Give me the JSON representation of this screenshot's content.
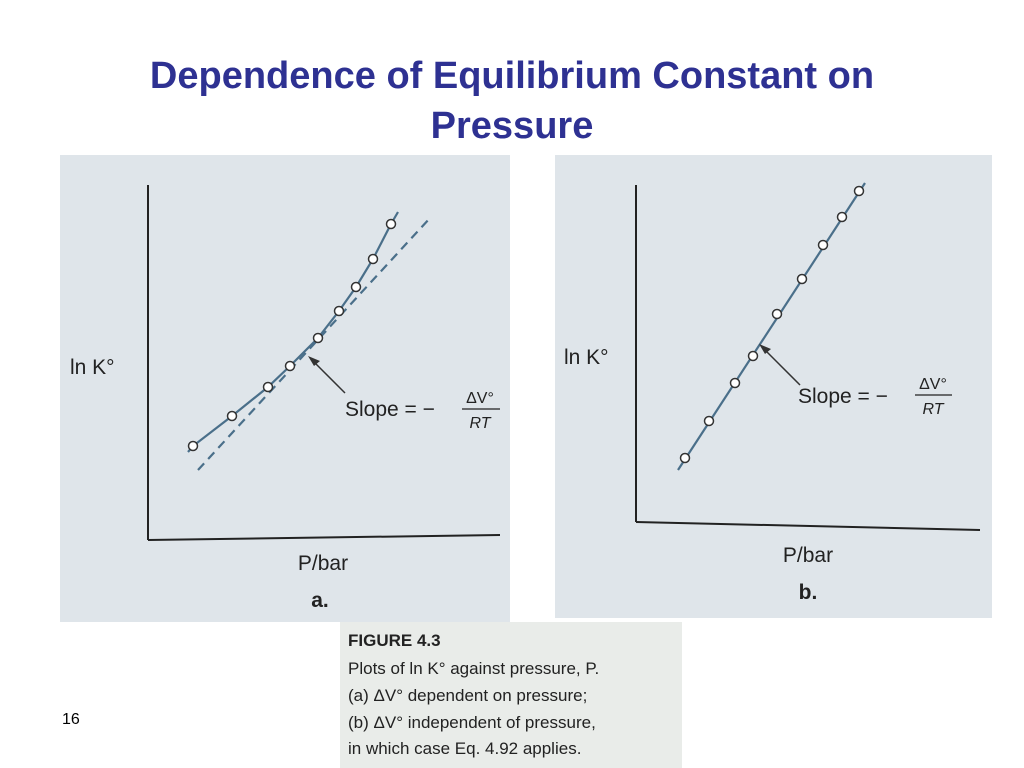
{
  "header": {
    "title_lines": [
      "Dependence of Equilibrium Constant on",
      "Pressure"
    ]
  },
  "figure": {
    "panels": [
      {
        "y_label": "ln K°",
        "slope_text": "Slope = −",
        "slope_numerator": "ΔV°",
        "slope_denominator": "RT",
        "x_label": "P/bar",
        "panel_label": "a."
      },
      {
        "y_label": "ln K°",
        "slope_text": "Slope = −",
        "slope_numerator": "ΔV°",
        "slope_denominator": "RT",
        "x_label": "P/bar",
        "panel_label": "b."
      }
    ],
    "caption": {
      "heading": "FIGURE 4.3",
      "lines": [
        "Plots of ln K° against pressure, P.",
        "(a) ΔV° dependent on pressure;",
        "(b) ΔV° independent of pressure,",
        "in which case Eq. 4.92 applies."
      ]
    }
  },
  "footer": {
    "page_number": "16"
  }
}
